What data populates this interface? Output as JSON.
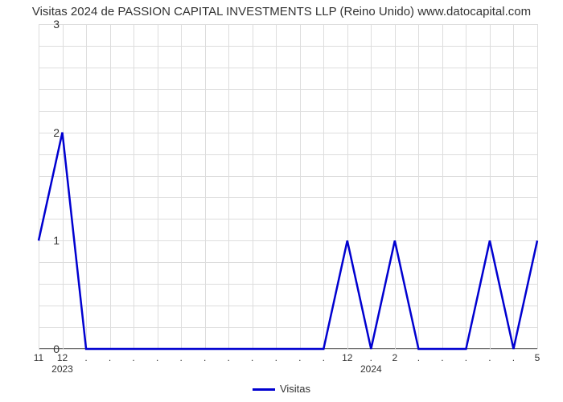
{
  "title": "Visitas 2024 de PASSION CAPITAL INVESTMENTS LLP (Reino Unido) www.datocapital.com",
  "chart": {
    "type": "line",
    "background_color": "#ffffff",
    "grid_color": "#dddddd",
    "axis_color": "#707070",
    "line_color": "#0000d0",
    "line_width": 2.5,
    "title_fontsize": 15,
    "tick_fontsize": 13,
    "ylim": [
      0,
      3
    ],
    "ytick_step_major": 1,
    "ytick_step_minor": 0.2,
    "y_ticks": [
      "0",
      "1",
      "2",
      "3"
    ],
    "x_count": 22,
    "x_labels_top": [
      "11",
      "12",
      ".",
      ".",
      ".",
      ".",
      ".",
      ".",
      ".",
      ".",
      ".",
      ".",
      ".",
      "12",
      ".",
      "2",
      ".",
      ".",
      ".",
      ".",
      ".",
      "5"
    ],
    "x_labels_bottom": [
      "",
      "2023",
      "",
      "",
      "",
      "",
      "",
      "",
      "",
      "",
      "",
      "",
      "",
      "",
      "2024",
      "",
      "",
      "",
      "",
      "",
      "",
      ""
    ],
    "series": {
      "name": "Visitas",
      "values": [
        1,
        2,
        0,
        0,
        0,
        0,
        0,
        0,
        0,
        0,
        0,
        0,
        0,
        1,
        0,
        1,
        0,
        0,
        0,
        1,
        0,
        1
      ]
    }
  },
  "legend_label": "Visitas"
}
